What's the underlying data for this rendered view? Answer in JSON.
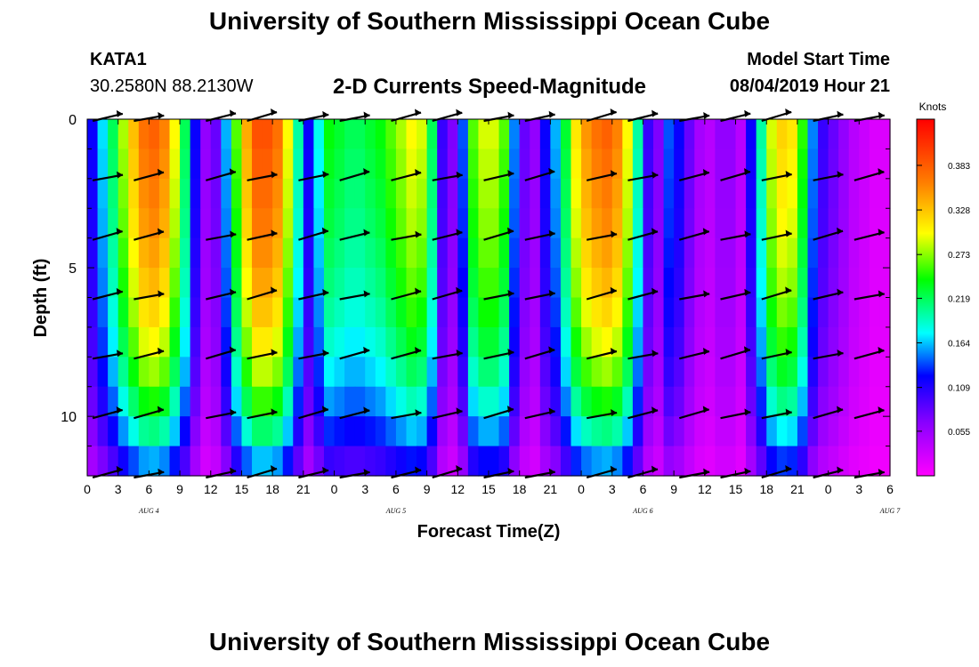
{
  "header": {
    "title": "University of Southern Mississippi Ocean Cube",
    "station_id": "KATA1",
    "station_coords": "30.2580N 88.2130W",
    "plot_title": "2-D Currents Speed-Magnitude",
    "model_start_label": "Model Start Time",
    "model_start_value": "08/04/2019 Hour 21"
  },
  "footer": {
    "title": "University of Southern Mississippi Ocean Cube"
  },
  "chart_data": {
    "type": "heatmap",
    "title": "2-D Currents Speed-Magnitude",
    "xlabel": "Forecast Time(Z)",
    "ylabel": "Depth (ft)",
    "x_tick_labels": [
      "0",
      "3",
      "6",
      "9",
      "12",
      "15",
      "18",
      "21",
      "0",
      "3",
      "6",
      "9",
      "12",
      "15",
      "18",
      "21",
      "0",
      "3",
      "6",
      "9",
      "12",
      "15",
      "18",
      "21",
      "0",
      "3",
      "6"
    ],
    "date_labels": [
      {
        "label": "AUG 4",
        "hours": 6
      },
      {
        "label": "AUG 5",
        "hours": 30
      },
      {
        "label": "AUG 6",
        "hours": 54
      },
      {
        "label": "AUG 7",
        "hours": 78
      }
    ],
    "xlim_hours": [
      0,
      78
    ],
    "ylim_ft": [
      0,
      12
    ],
    "y_ticks": [
      0,
      5,
      10
    ],
    "y_axis_inverted": true,
    "colorbar": {
      "unit": "Knots",
      "tick_labels": [
        "0.383",
        "0.328",
        "0.273",
        "0.219",
        "0.164",
        "0.109",
        "0.055"
      ],
      "tick_values": [
        0.383,
        0.328,
        0.273,
        0.219,
        0.164,
        0.109,
        0.055
      ],
      "range": [
        0.0,
        0.44
      ]
    },
    "speed_profile": {
      "hours": [
        0,
        1,
        2,
        3,
        4,
        5,
        6,
        7,
        8,
        9,
        10,
        11,
        12,
        13,
        14,
        15,
        16,
        17,
        18,
        19,
        20,
        21,
        22,
        23,
        24,
        25,
        26,
        27,
        28,
        29,
        30,
        31,
        32,
        33,
        34,
        35,
        36,
        37,
        38,
        39,
        40,
        41,
        42,
        43,
        44,
        45,
        46,
        47,
        48,
        49,
        50,
        51,
        52,
        53,
        54,
        55,
        56,
        57,
        58,
        59,
        60,
        61,
        62,
        63,
        64,
        65,
        66,
        67,
        68,
        69,
        70,
        71,
        72,
        73,
        74,
        75,
        76,
        77
      ],
      "surface_speed_knots": [
        0.12,
        0.17,
        0.22,
        0.28,
        0.33,
        0.37,
        0.38,
        0.36,
        0.3,
        0.22,
        0.12,
        0.06,
        0.08,
        0.16,
        0.26,
        0.34,
        0.39,
        0.39,
        0.37,
        0.3,
        0.2,
        0.12,
        0.18,
        0.24,
        0.23,
        0.22,
        0.22,
        0.23,
        0.24,
        0.26,
        0.28,
        0.3,
        0.29,
        0.22,
        0.1,
        0.07,
        0.14,
        0.26,
        0.29,
        0.29,
        0.26,
        0.15,
        0.08,
        0.06,
        0.12,
        0.16,
        0.23,
        0.31,
        0.35,
        0.37,
        0.38,
        0.36,
        0.3,
        0.2,
        0.1,
        0.07,
        0.14,
        0.12,
        0.08,
        0.05,
        0.04,
        0.06,
        0.06,
        0.04,
        0.12,
        0.2,
        0.29,
        0.32,
        0.31,
        0.25,
        0.15,
        0.1,
        0.08,
        0.06,
        0.04,
        0.03,
        0.02,
        0.02
      ]
    },
    "depth_decay": [
      1.0,
      0.98,
      0.96,
      0.94,
      0.91,
      0.88,
      0.84,
      0.79,
      0.73,
      0.65,
      0.55,
      0.42
    ],
    "vector_rows_ft": [
      0,
      2,
      4,
      6,
      8,
      10,
      12
    ],
    "vector_columns_hours": [
      2,
      6,
      13,
      17,
      22,
      26,
      31,
      35,
      40,
      44,
      50,
      54,
      59,
      63,
      67,
      72,
      76
    ]
  }
}
